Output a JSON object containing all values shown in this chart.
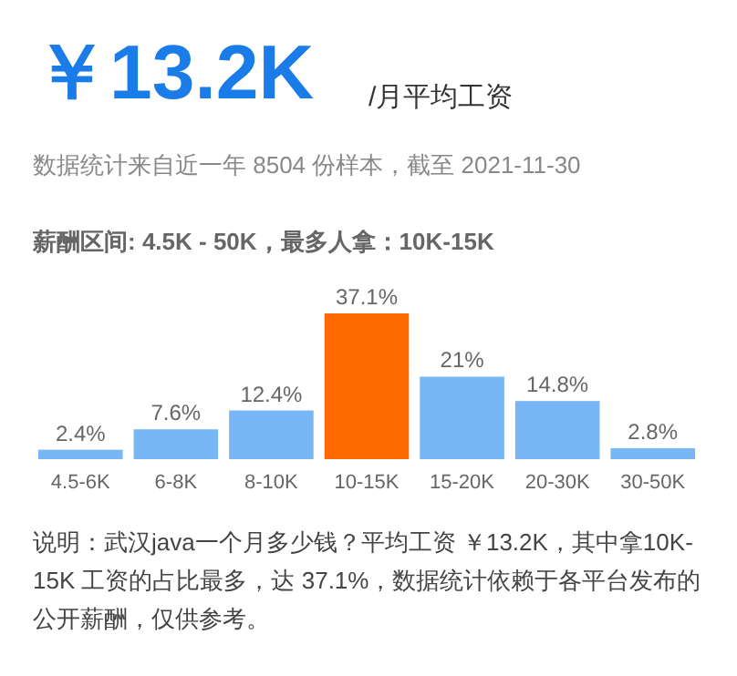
{
  "chart_data": {
    "type": "bar",
    "title": "￥13.2K",
    "subtitle": "/月平均工资",
    "annotations": [
      "数据统计来自近一年 8504 份样本，截至 2021-11-30",
      "薪酬区间: 4.5K - 50K，最多人拿：10K-15K",
      "说明：武汉java一个月多少钱？平均工资 ￥13.2K，其中拿10K-15K 工资的占比最多，达 37.1%，数据统计依赖于各平台发布的公开薪酬，仅供参考。"
    ],
    "categories": [
      "4.5-6K",
      "6-8K",
      "8-10K",
      "10-15K",
      "15-20K",
      "20-30K",
      "30-50K"
    ],
    "values": [
      2.4,
      7.6,
      12.4,
      37.1,
      21,
      14.8,
      2.8
    ],
    "value_labels": [
      "2.4%",
      "7.6%",
      "12.4%",
      "37.1%",
      "21%",
      "14.8%",
      "2.8%"
    ],
    "colors": [
      "#78b6f6",
      "#78b6f6",
      "#78b6f6",
      "#ff6a00",
      "#78b6f6",
      "#78b6f6",
      "#78b6f6"
    ]
  }
}
